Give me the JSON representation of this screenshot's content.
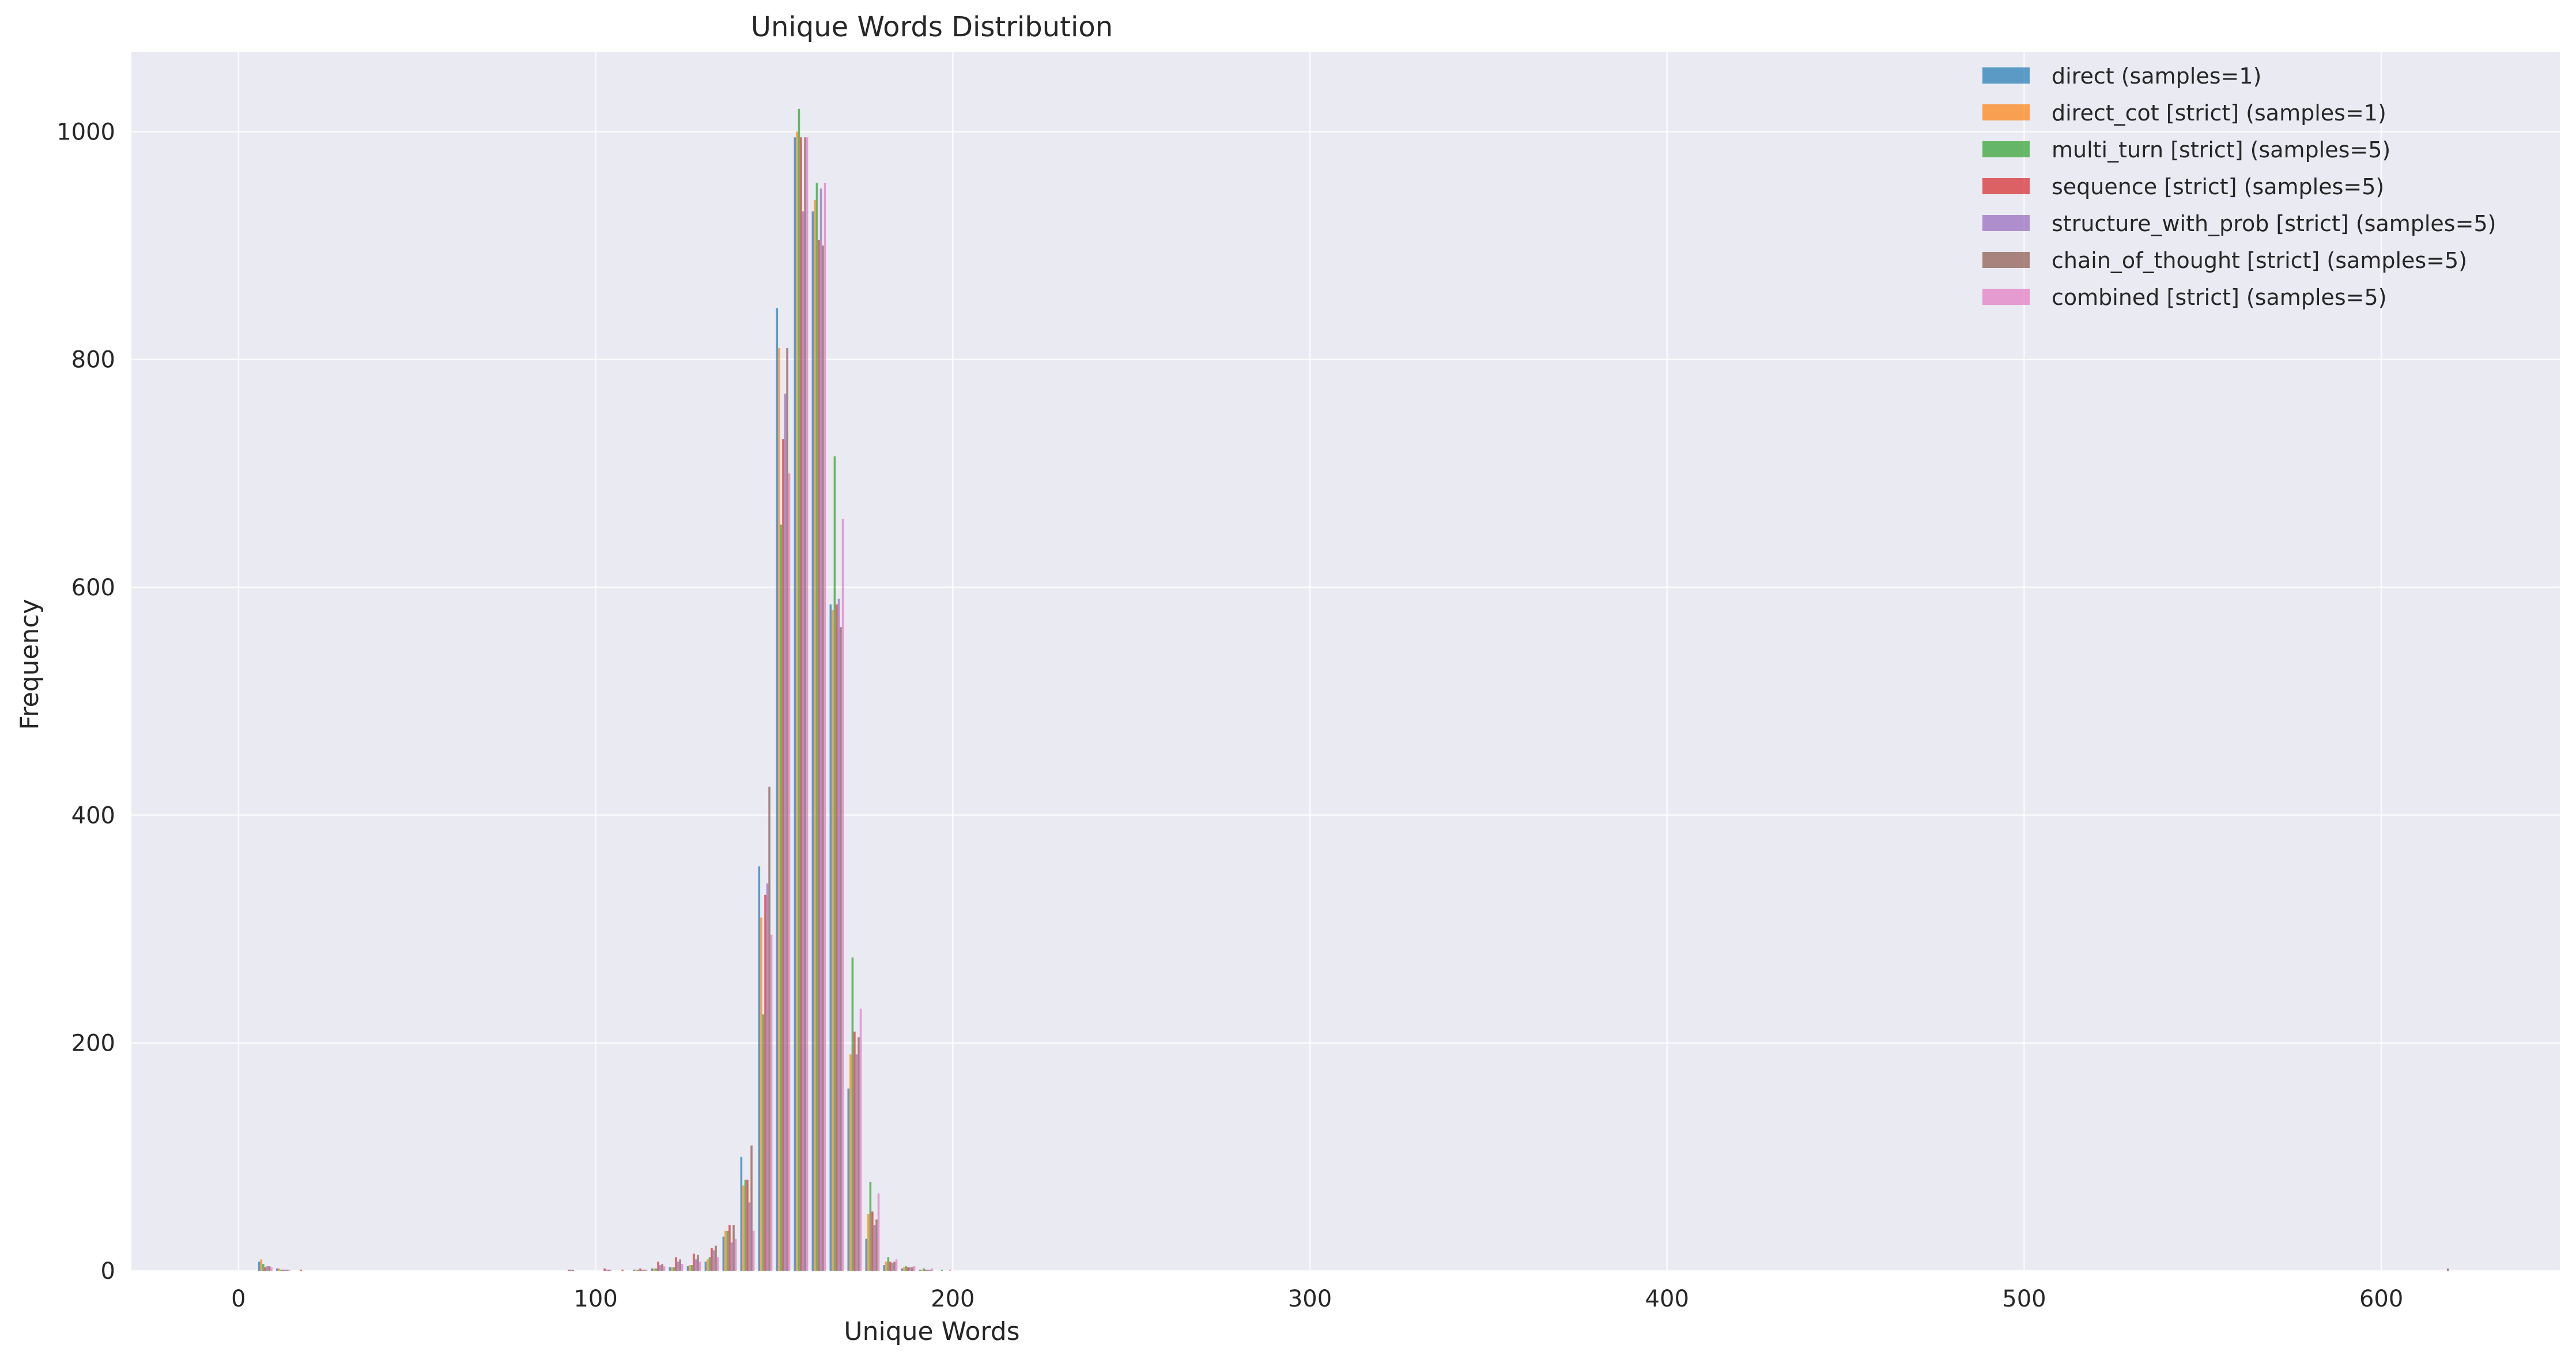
{
  "chart_data": {
    "type": "bar",
    "title": "Unique Words Distribution",
    "xlabel": "Unique Words",
    "ylabel": "Frequency",
    "xlim": [
      -30,
      650
    ],
    "ylim": [
      0,
      1070
    ],
    "xticks": [
      0,
      100,
      200,
      300,
      400,
      500,
      600
    ],
    "yticks": [
      0,
      200,
      400,
      600,
      800,
      1000
    ],
    "grid": true,
    "legend_position": "top-right",
    "bin_start": 5,
    "bin_width": 5,
    "bins": [
      5,
      10,
      15,
      90,
      95,
      100,
      105,
      110,
      115,
      120,
      125,
      130,
      135,
      140,
      145,
      150,
      155,
      160,
      165,
      170,
      175,
      180,
      185,
      190,
      195,
      200,
      615
    ],
    "series": [
      {
        "name": "direct (samples=1)",
        "color": "#1f77b4",
        "values": [
          8,
          2,
          0,
          0,
          0,
          0,
          0,
          1,
          2,
          3,
          4,
          8,
          30,
          100,
          355,
          845,
          995,
          930,
          585,
          160,
          28,
          5,
          2,
          1,
          0,
          0,
          0
        ]
      },
      {
        "name": "direct_cot [strict] (samples=1)",
        "color": "#ff7f0e",
        "values": [
          10,
          2,
          0,
          0,
          0,
          0,
          0,
          1,
          2,
          3,
          5,
          10,
          35,
          75,
          310,
          810,
          1000,
          940,
          580,
          190,
          50,
          8,
          3,
          1,
          0,
          0,
          0
        ]
      },
      {
        "name": "multi_turn [strict] (samples=5)",
        "color": "#2ca02c",
        "values": [
          6,
          1,
          0,
          0,
          0,
          0,
          0,
          1,
          2,
          3,
          5,
          12,
          35,
          80,
          225,
          655,
          1020,
          955,
          715,
          275,
          78,
          12,
          4,
          2,
          1,
          0,
          0
        ]
      },
      {
        "name": "sequence [strict] (samples=5)",
        "color": "#d62728",
        "values": [
          3,
          1,
          1,
          1,
          0,
          2,
          1,
          2,
          8,
          12,
          15,
          20,
          40,
          80,
          330,
          730,
          995,
          905,
          585,
          210,
          52,
          8,
          3,
          1,
          0,
          0,
          0
        ]
      },
      {
        "name": "structure_with_prob [strict] (samples=5)",
        "color": "#9467bd",
        "values": [
          4,
          1,
          0,
          1,
          0,
          1,
          0,
          1,
          5,
          8,
          10,
          18,
          25,
          60,
          340,
          770,
          930,
          950,
          590,
          190,
          40,
          7,
          3,
          1,
          0,
          0,
          0
        ]
      },
      {
        "name": "chain_of_thought [strict] (samples=5)",
        "color": "#8c564b",
        "values": [
          4,
          1,
          0,
          1,
          0,
          1,
          0,
          1,
          6,
          10,
          14,
          22,
          40,
          110,
          425,
          810,
          995,
          900,
          565,
          205,
          45,
          8,
          3,
          1,
          0,
          0,
          2
        ]
      },
      {
        "name": "combined [strict] (samples=5)",
        "color": "#e377c2",
        "values": [
          3,
          1,
          0,
          0,
          0,
          1,
          0,
          1,
          4,
          6,
          8,
          12,
          28,
          35,
          295,
          700,
          995,
          955,
          660,
          230,
          68,
          10,
          4,
          2,
          1,
          0,
          0
        ]
      }
    ]
  }
}
